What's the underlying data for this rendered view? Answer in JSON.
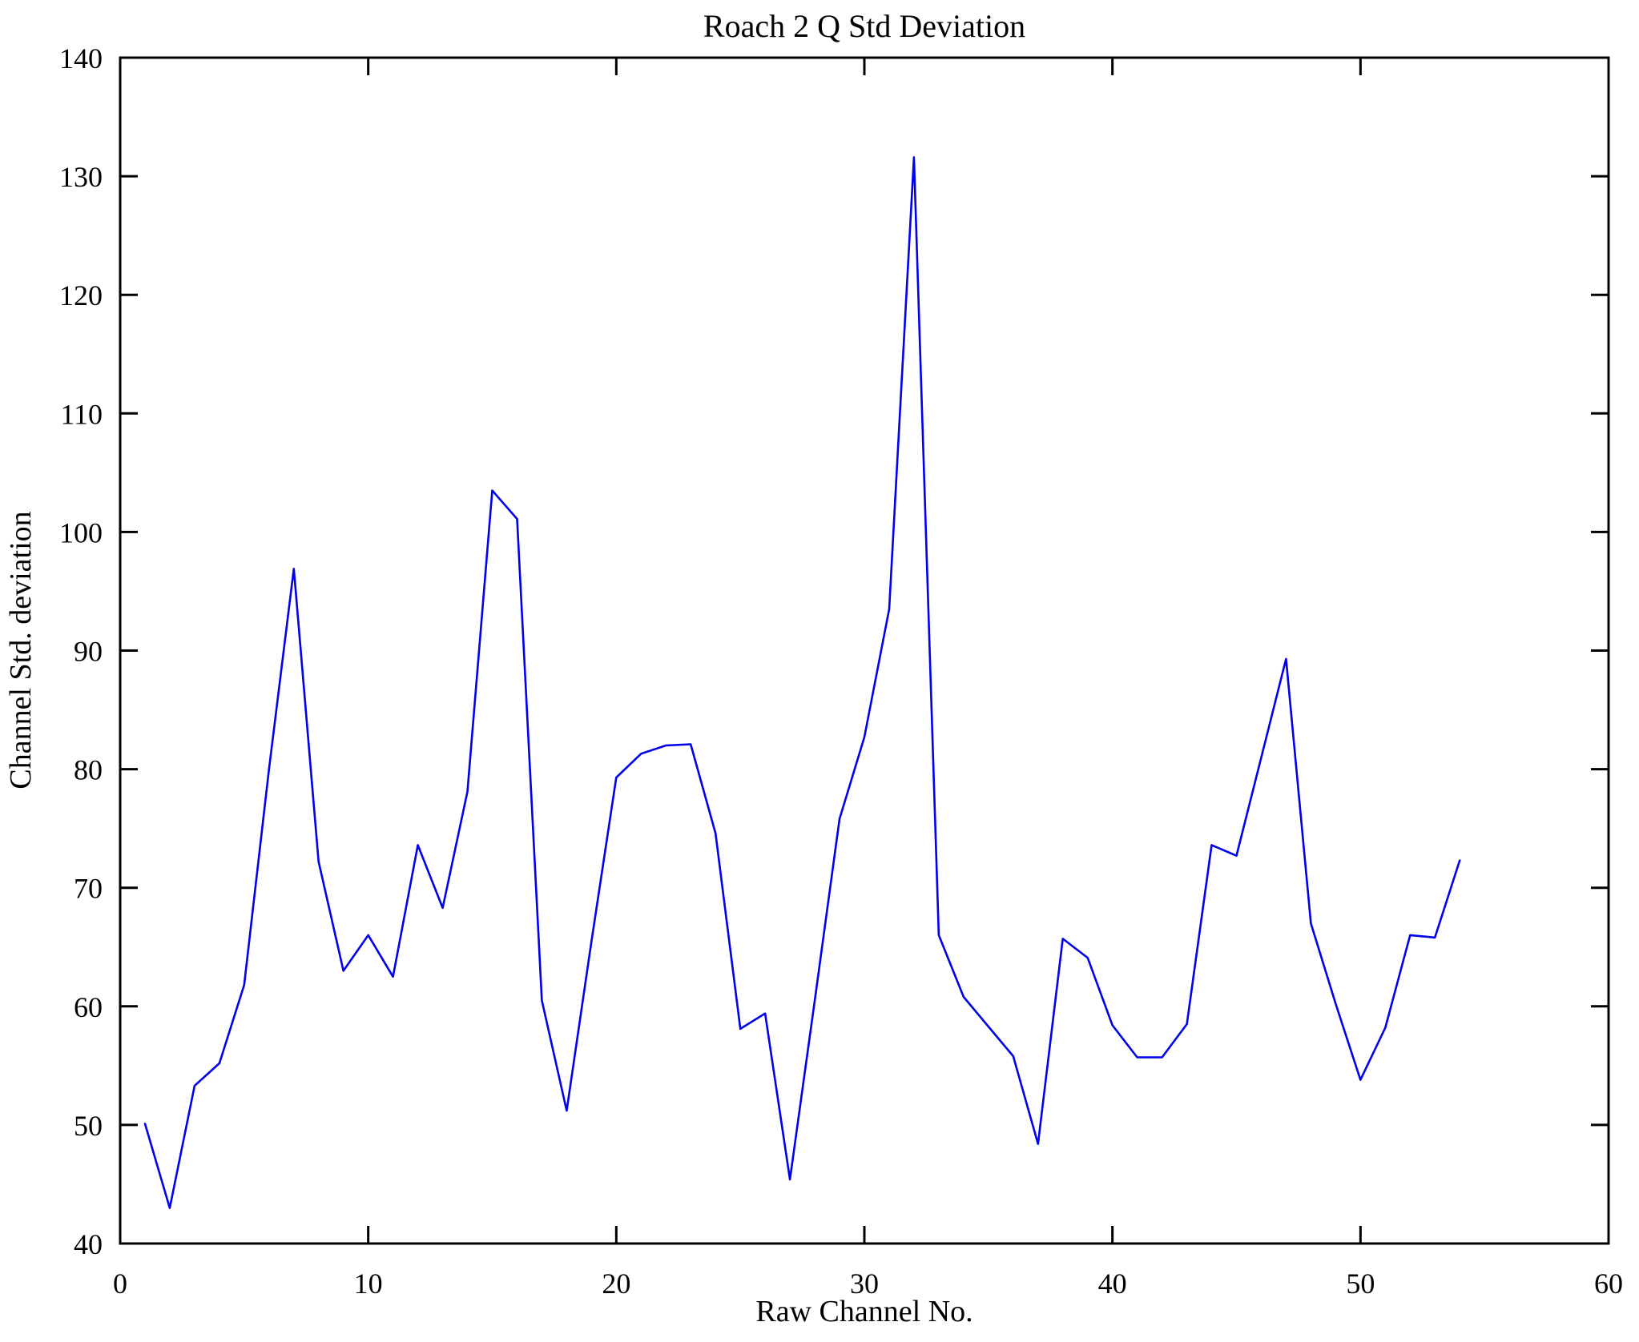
{
  "figure": {
    "title": "Roach 2 Q Std Deviation",
    "xlabel": "Raw Channel No.",
    "ylabel": "Channel Std. deviation"
  },
  "chart_data": {
    "type": "line",
    "title": "Roach 2 Q Std Deviation",
    "xlabel": "Raw Channel No.",
    "ylabel": "Channel Std. deviation",
    "xlim": [
      0,
      60
    ],
    "ylim": [
      40,
      140
    ],
    "xticks": [
      0,
      10,
      20,
      30,
      40,
      50,
      60
    ],
    "yticks": [
      40,
      50,
      60,
      70,
      80,
      90,
      100,
      110,
      120,
      130,
      140
    ],
    "grid": false,
    "legend": "none",
    "line_color": "#0000EE",
    "axis_color": "#000000",
    "x": [
      1,
      2,
      3,
      4,
      5,
      6,
      7,
      8,
      9,
      10,
      11,
      12,
      13,
      14,
      15,
      16,
      17,
      18,
      19,
      20,
      21,
      22,
      23,
      24,
      25,
      26,
      27,
      28,
      29,
      30,
      31,
      32,
      33,
      34,
      35,
      36,
      37,
      38,
      39,
      40,
      41,
      42,
      43,
      44,
      45,
      46,
      47,
      48,
      49,
      50,
      51,
      52,
      53,
      54
    ],
    "y": [
      50.1,
      43.0,
      53.3,
      55.2,
      61.8,
      80.0,
      96.9,
      72.2,
      63.0,
      66.0,
      62.5,
      73.6,
      68.3,
      78.1,
      103.5,
      101.1,
      60.5,
      51.2,
      65.5,
      79.3,
      81.3,
      82.0,
      82.1,
      74.6,
      58.1,
      59.4,
      45.4,
      60.5,
      75.8,
      82.7,
      93.5,
      131.6,
      66.0,
      60.8,
      58.3,
      55.8,
      48.4,
      65.7,
      64.1,
      58.4,
      55.7,
      55.7,
      58.5,
      73.6,
      72.7,
      81.0,
      89.3,
      67.0,
      60.2,
      53.8,
      58.2,
      66.0,
      65.8,
      72.3
    ]
  }
}
